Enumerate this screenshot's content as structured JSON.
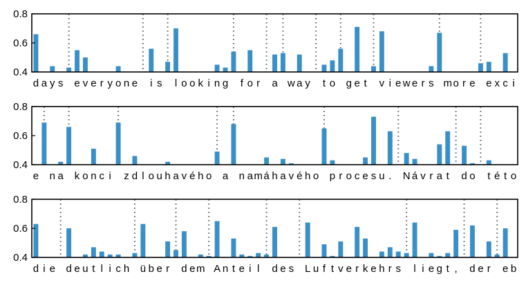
{
  "colors": {
    "bar": "#3a8fc7",
    "separator": "#7f7f7f",
    "axis": "#000000"
  },
  "chart_data": [
    {
      "type": "bar",
      "y_ticks": [
        "0.4",
        "0.6",
        "0.8"
      ],
      "ylim": [
        0.4,
        0.8
      ],
      "characters": [
        "d",
        "a",
        "y",
        "s",
        " ",
        "e",
        "v",
        "e",
        "r",
        "y",
        "o",
        "n",
        "e",
        " ",
        "i",
        "s",
        " ",
        "l",
        "o",
        "o",
        "k",
        "i",
        "n",
        "g",
        " ",
        "f",
        "o",
        "r",
        " ",
        "a",
        " ",
        "w",
        "a",
        "y",
        " ",
        "t",
        "o",
        " ",
        "g",
        "e",
        "t",
        " ",
        "v",
        "i",
        "e",
        "w",
        "e",
        "r",
        "s",
        " ",
        "m",
        "o",
        "r",
        "e",
        " ",
        "e",
        "x",
        "c",
        "i"
      ],
      "values": [
        0.66,
        0.4,
        0.44,
        0.4,
        0.43,
        0.55,
        0.5,
        0.4,
        0.4,
        0.4,
        0.44,
        0.4,
        0.4,
        0.4,
        0.56,
        0.4,
        0.47,
        0.7,
        0.4,
        0.4,
        0.4,
        0.4,
        0.45,
        0.43,
        0.54,
        0.4,
        0.55,
        0.4,
        0.4,
        0.52,
        0.53,
        0.4,
        0.52,
        0.4,
        0.4,
        0.45,
        0.48,
        0.56,
        0.4,
        0.71,
        0.4,
        0.44,
        0.68,
        0.4,
        0.4,
        0.4,
        0.4,
        0.4,
        0.44,
        0.67,
        0.4,
        0.4,
        0.4,
        0.4,
        0.46,
        0.47,
        0.4,
        0.53,
        0.4
      ],
      "separators": [
        4,
        13,
        16,
        24,
        28,
        30,
        34,
        37,
        41,
        49,
        54
      ]
    },
    {
      "type": "bar",
      "y_ticks": [
        "0.4",
        "0.6",
        "0.8"
      ],
      "ylim": [
        0.4,
        0.8
      ],
      "characters": [
        "e",
        " ",
        "n",
        "a",
        " ",
        "k",
        "o",
        "n",
        "c",
        "i",
        " ",
        "z",
        "d",
        "l",
        "o",
        "u",
        "h",
        "a",
        "v",
        "é",
        "h",
        "o",
        " ",
        "a",
        " ",
        "n",
        "a",
        "m",
        "á",
        "h",
        "a",
        "v",
        "é",
        "h",
        "o",
        " ",
        "p",
        "r",
        "o",
        "c",
        "e",
        "s",
        "u",
        ".",
        " ",
        "N",
        "á",
        "v",
        "r",
        "a",
        "t",
        " ",
        "d",
        "o",
        " ",
        "t",
        "é",
        "t",
        "o"
      ],
      "values": [
        0.4,
        0.69,
        0.4,
        0.42,
        0.66,
        0.4,
        0.4,
        0.51,
        0.4,
        0.4,
        0.69,
        0.4,
        0.46,
        0.4,
        0.4,
        0.4,
        0.42,
        0.4,
        0.4,
        0.4,
        0.4,
        0.4,
        0.49,
        0.4,
        0.68,
        0.4,
        0.4,
        0.4,
        0.45,
        0.4,
        0.44,
        0.41,
        0.4,
        0.4,
        0.4,
        0.65,
        0.43,
        0.4,
        0.4,
        0.4,
        0.45,
        0.73,
        0.4,
        0.63,
        0.4,
        0.48,
        0.44,
        0.4,
        0.4,
        0.54,
        0.63,
        0.4,
        0.53,
        0.41,
        0.4,
        0.43,
        0.4,
        0.4,
        0.4
      ],
      "separators": [
        1,
        4,
        10,
        22,
        24,
        35,
        44,
        51,
        54
      ]
    },
    {
      "type": "bar",
      "y_ticks": [
        "0.4",
        "0.6",
        "0.8"
      ],
      "ylim": [
        0.4,
        0.8
      ],
      "characters": [
        "d",
        "i",
        "e",
        " ",
        "d",
        "e",
        "u",
        "t",
        "l",
        "i",
        "c",
        "h",
        " ",
        "ü",
        "b",
        "e",
        "r",
        " ",
        "d",
        "e",
        "m",
        " ",
        "A",
        "n",
        "t",
        "e",
        "i",
        "l",
        " ",
        "d",
        "e",
        "s",
        " ",
        "L",
        "u",
        "f",
        "t",
        "v",
        "e",
        "r",
        "k",
        "e",
        "h",
        "r",
        "s",
        " ",
        "l",
        "i",
        "e",
        "g",
        "t",
        ",",
        " ",
        "d",
        "e",
        "r",
        " ",
        "e",
        "b"
      ],
      "values": [
        0.63,
        0.4,
        0.4,
        0.4,
        0.6,
        0.4,
        0.42,
        0.47,
        0.44,
        0.42,
        0.42,
        0.4,
        0.43,
        0.63,
        0.4,
        0.4,
        0.51,
        0.45,
        0.58,
        0.4,
        0.42,
        0.41,
        0.65,
        0.4,
        0.53,
        0.42,
        0.41,
        0.43,
        0.42,
        0.61,
        0.4,
        0.4,
        0.4,
        0.64,
        0.4,
        0.49,
        0.41,
        0.51,
        0.4,
        0.61,
        0.53,
        0.4,
        0.44,
        0.47,
        0.44,
        0.43,
        0.64,
        0.4,
        0.43,
        0.41,
        0.43,
        0.59,
        0.4,
        0.62,
        0.4,
        0.51,
        0.42,
        0.6,
        0.4
      ],
      "separators": [
        3,
        12,
        17,
        21,
        28,
        32,
        45,
        52,
        56
      ]
    }
  ]
}
